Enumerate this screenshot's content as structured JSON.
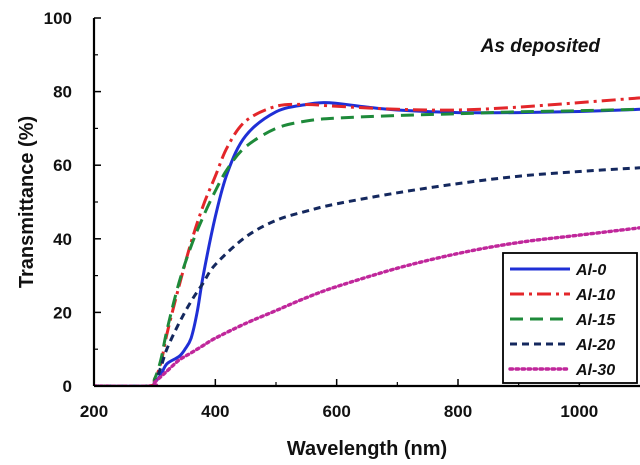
{
  "chart_data": {
    "type": "line",
    "title": "",
    "annotation": "As deposited",
    "xlabel": "Wavelength (nm)",
    "ylabel": "Transmittance (%)",
    "xlim": [
      200,
      1100
    ],
    "ylim": [
      0,
      100
    ],
    "xticks": [
      200,
      400,
      600,
      800,
      1000
    ],
    "yticks": [
      0,
      20,
      40,
      60,
      80,
      100
    ],
    "legend_position": "bottom-right",
    "grid": false,
    "series": [
      {
        "name": "Al-0",
        "color": "#1f2fd6",
        "dash": "solid",
        "x": [
          200,
          290,
          300,
          310,
          320,
          340,
          350,
          360,
          370,
          380,
          400,
          420,
          450,
          500,
          550,
          580,
          600,
          650,
          700,
          800,
          900,
          1000,
          1100
        ],
        "y": [
          0,
          0,
          1,
          3,
          6,
          8,
          10,
          13,
          20,
          30,
          46,
          58,
          68,
          74.5,
          76.5,
          77,
          76.8,
          75.8,
          75,
          74.3,
          74.3,
          74.6,
          75.2
        ]
      },
      {
        "name": "Al-10",
        "color": "#e3262a",
        "dash": "dashdot",
        "x": [
          200,
          290,
          300,
          310,
          320,
          340,
          360,
          380,
          400,
          420,
          450,
          500,
          550,
          600,
          700,
          800,
          900,
          1000,
          1100
        ],
        "y": [
          0,
          0,
          2,
          6,
          14,
          27,
          39,
          49,
          57,
          65,
          72,
          76,
          76.5,
          76,
          75.2,
          75,
          75.8,
          77,
          78.3
        ]
      },
      {
        "name": "Al-15",
        "color": "#1e8a3a",
        "dash": "dash",
        "x": [
          200,
          290,
          300,
          310,
          320,
          340,
          360,
          380,
          400,
          420,
          450,
          500,
          550,
          600,
          700,
          800,
          900,
          1000,
          1100
        ],
        "y": [
          0,
          0,
          2,
          7,
          15,
          28,
          38,
          46,
          53,
          59,
          65,
          70,
          72,
          72.8,
          73.5,
          74,
          74.5,
          74.8,
          75.2
        ]
      },
      {
        "name": "Al-20",
        "color": "#14285e",
        "dash": "shortdash",
        "x": [
          200,
          290,
          300,
          310,
          320,
          340,
          360,
          380,
          400,
          450,
          500,
          550,
          600,
          700,
          800,
          900,
          1000,
          1100
        ],
        "y": [
          0,
          0,
          1,
          5,
          10,
          17,
          23,
          28,
          33,
          40.5,
          45,
          47.5,
          49.5,
          52.5,
          55,
          57,
          58.3,
          59.3
        ]
      },
      {
        "name": "Al-30",
        "color": "#c0279b",
        "dash": "dot",
        "x": [
          200,
          295,
          300,
          310,
          320,
          340,
          360,
          380,
          400,
          450,
          500,
          550,
          600,
          700,
          800,
          900,
          1000,
          1100
        ],
        "y": [
          0,
          0,
          1,
          2.5,
          4,
          7,
          9,
          11,
          13,
          17,
          20.5,
          24,
          27,
          32,
          36,
          39,
          41,
          43
        ]
      }
    ]
  }
}
